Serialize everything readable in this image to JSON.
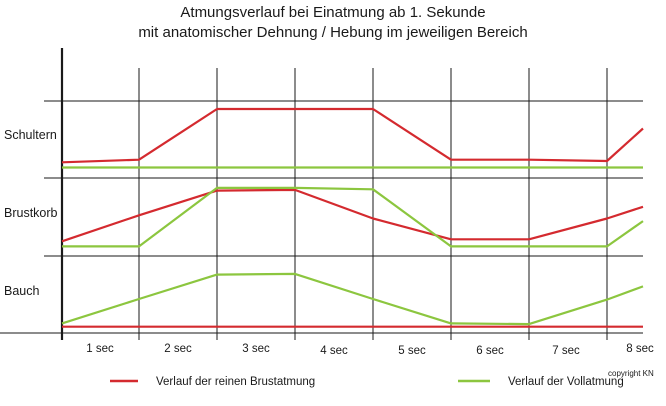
{
  "title": {
    "line1": "Atmungsverlauf bei Einatmung ab 1. Sekunde",
    "line2": "mit anatomischer Dehnung / Hebung im jeweiligen Bereich"
  },
  "copyright": "copyright KN",
  "colors": {
    "red": "#d42a2f",
    "green": "#8cc63f",
    "axis": "#1a1a1a"
  },
  "chart_data": {
    "type": "line",
    "rows": [
      "Schultern",
      "Brustkorb",
      "Bauch"
    ],
    "ticks": [
      "1 sec",
      "2 sec",
      "3 sec",
      "4 sec",
      "5 sec",
      "6 sec",
      "7 sec",
      "8 sec"
    ],
    "x": [
      0,
      1,
      2,
      3,
      4,
      5,
      6,
      7,
      7.5
    ],
    "series": [
      {
        "name": "Verlauf der reinen Brustatmung",
        "color": "#d42a2f",
        "rows": {
          "Schultern": [
            0.18,
            0.22,
            1.0,
            1.0,
            1.0,
            0.22,
            0.22,
            0.2,
            0.7
          ],
          "Brustkorb": [
            0.15,
            0.55,
            0.93,
            0.94,
            0.5,
            0.18,
            0.18,
            0.5,
            0.68
          ],
          "Bauch": [
            0.05,
            0.05,
            0.05,
            0.05,
            0.05,
            0.05,
            0.05,
            0.05,
            0.05
          ]
        }
      },
      {
        "name": "Verlauf der Vollatmung",
        "color": "#8cc63f",
        "rows": {
          "Schultern": [
            0.1,
            0.1,
            0.1,
            0.1,
            0.1,
            0.1,
            0.1,
            0.1,
            0.1
          ],
          "Brustkorb": [
            0.07,
            0.07,
            0.97,
            0.97,
            0.95,
            0.07,
            0.07,
            0.07,
            0.46
          ],
          "Bauch": [
            0.1,
            0.47,
            0.84,
            0.85,
            0.47,
            0.1,
            0.09,
            0.46,
            0.66
          ]
        }
      }
    ]
  }
}
